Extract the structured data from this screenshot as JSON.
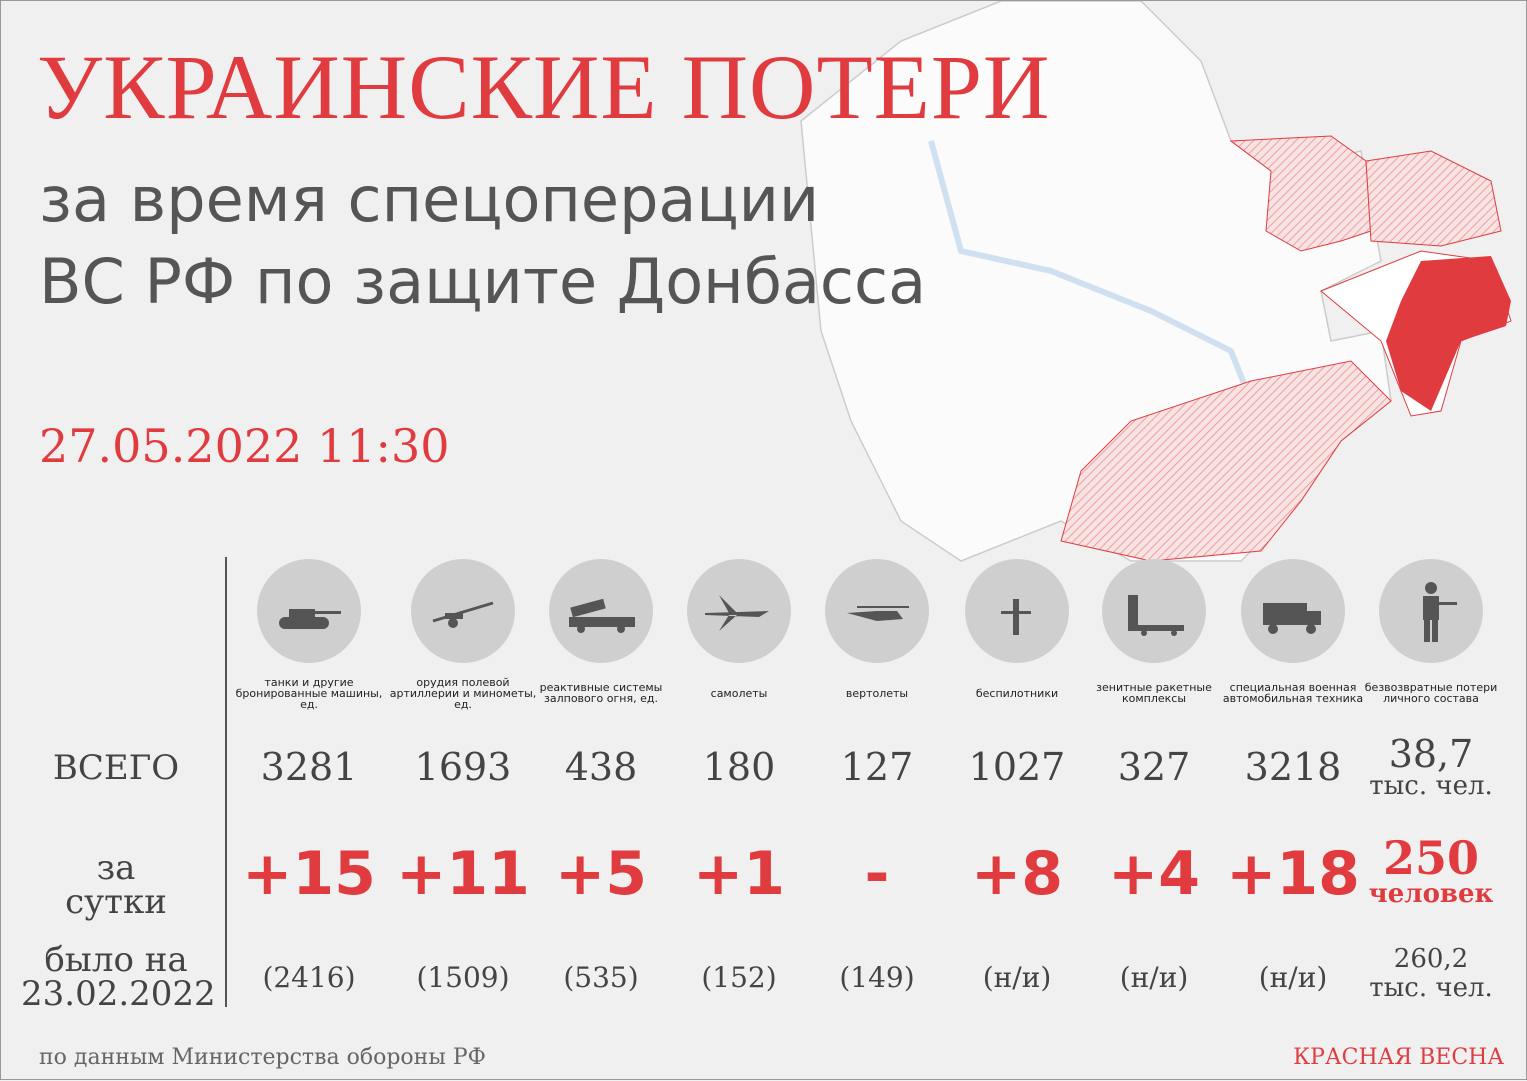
{
  "header": {
    "title": "УКРАИНСКИЕ ПОТЕРИ",
    "subtitle_line1": "за время спецоперации",
    "subtitle_line2": "ВС РФ по защите Донбасса",
    "date": "27.05.2022 11:30"
  },
  "colors": {
    "accent": "#e03c40",
    "text": "#444444",
    "icon_circle": "#cfcfcf",
    "icon": "#555555"
  },
  "rows": {
    "total": "ВСЕГО",
    "day": "за сутки",
    "was_line1": "было на",
    "was_line2": "23.02.2022"
  },
  "columns": [
    {
      "icon": "tank-icon",
      "caption": "танки и другие бронированные машины, ед.",
      "total": "3281",
      "day": "+15",
      "was": "(2416)"
    },
    {
      "icon": "howitzer-icon",
      "caption": "орудия полевой артиллерии и минометы, ед.",
      "total": "1693",
      "day": "+11",
      "was": "(1509)"
    },
    {
      "icon": "rocket-launcher-icon",
      "caption": "реактивные системы залпового огня, ед.",
      "total": "438",
      "day": "+5",
      "was": "(535)"
    },
    {
      "icon": "jet-icon",
      "caption": "самолеты",
      "total": "180",
      "day": "+1",
      "was": "(152)"
    },
    {
      "icon": "helicopter-icon",
      "caption": "вертолеты",
      "total": "127",
      "day": "-",
      "was": "(149)"
    },
    {
      "icon": "drone-icon",
      "caption": "беспилотники",
      "total": "1027",
      "day": "+8",
      "was": "(н/и)"
    },
    {
      "icon": "sam-icon",
      "caption": "зенитные ракетные комплексы",
      "total": "327",
      "day": "+4",
      "was": "(н/и)"
    },
    {
      "icon": "truck-icon",
      "caption": "специальная военная автомобильная техника",
      "total": "3218",
      "day": "+18",
      "was": "(н/и)"
    },
    {
      "icon": "soldier-icon",
      "caption": "безвозвратные потери личного состава",
      "total": "38,7",
      "total_unit": "тыс. чел.",
      "day": "250",
      "day_unit": "человек",
      "was": "260,2",
      "was_unit": "тыс. чел."
    }
  ],
  "footer": {
    "source": "по данным Министерства обороны РФ",
    "brand": "КРАСНАЯ ВЕСНА"
  }
}
